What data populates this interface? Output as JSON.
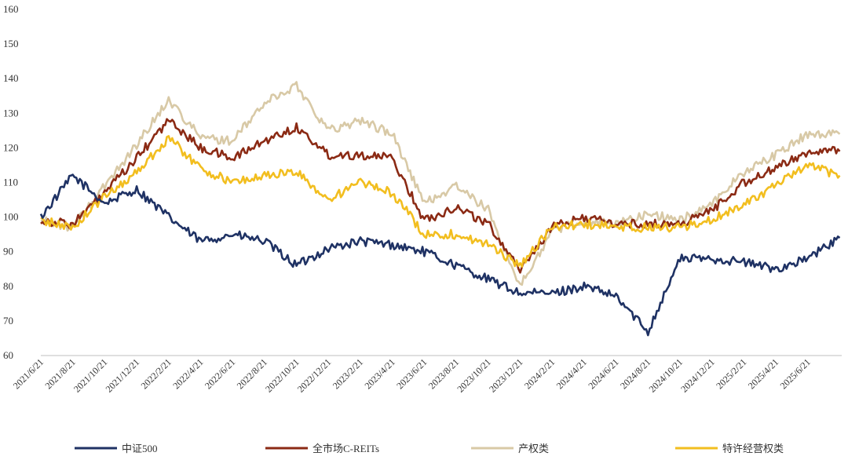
{
  "chart_data": {
    "type": "line",
    "title": "",
    "xlabel": "",
    "ylabel": "",
    "ylim": [
      60,
      160
    ],
    "yticks": [
      60,
      70,
      80,
      90,
      100,
      110,
      120,
      130,
      140,
      150,
      160
    ],
    "x": [
      "2021/6/21",
      "2021/8/21",
      "2021/10/21",
      "2021/12/21",
      "2022/2/21",
      "2022/4/21",
      "2022/6/21",
      "2022/8/21",
      "2022/10/21",
      "2022/12/21",
      "2023/2/21",
      "2023/4/21",
      "2023/6/21",
      "2023/8/21",
      "2023/10/21",
      "2023/12/21",
      "2024/2/21",
      "2024/4/21",
      "2024/6/21",
      "2024/8/21",
      "2024/10/21",
      "2024/12/21",
      "2025/2/21",
      "2025/4/21",
      "2025/6/21",
      "2025/7/21"
    ],
    "xticks": [
      "2021/6/21",
      "2021/8/21",
      "2021/10/21",
      "2021/12/21",
      "2022/2/21",
      "2022/4/21",
      "2022/6/21",
      "2022/8/21",
      "2022/10/21",
      "2022/12/21",
      "2023/2/21",
      "2023/4/21",
      "2023/6/21",
      "2023/8/21",
      "2023/10/21",
      "2023/12/21",
      "2024/2/21",
      "2024/4/21",
      "2024/6/21",
      "2024/8/21",
      "2024/10/21",
      "2024/12/21",
      "2025/2/21",
      "2025/4/21",
      "2025/6/21"
    ],
    "grid": false,
    "legend_position": "bottom",
    "series": [
      {
        "name": "中证500",
        "color": "#1f3264",
        "values": [
          100,
          112,
          104,
          108,
          100,
          93,
          95,
          93,
          86,
          91,
          93,
          92,
          90,
          86,
          82,
          78,
          78,
          80,
          77,
          67,
          88,
          88,
          87,
          85,
          88,
          94
        ]
      },
      {
        "name": "全市场C-REITs",
        "color": "#8b2a14",
        "values": [
          99,
          98,
          107,
          117,
          128,
          120,
          117,
          122,
          126,
          118,
          118,
          117,
          99,
          103,
          98,
          85,
          97,
          100,
          98,
          98,
          98,
          102,
          110,
          114,
          119,
          119
        ]
      },
      {
        "name": "产权类",
        "color": "#d8c9a6",
        "values": [
          99,
          97,
          109,
          121,
          134,
          123,
          122,
          133,
          138,
          125,
          128,
          124,
          104,
          109,
          102,
          80,
          96,
          99,
          98,
          101,
          99,
          104,
          113,
          118,
          124,
          124
        ]
      },
      {
        "name": "特许经营权类",
        "color": "#f2be1f",
        "values": [
          99,
          97,
          106,
          113,
          123,
          114,
          110,
          112,
          113,
          105,
          110,
          107,
          95,
          95,
          92,
          86,
          97,
          98,
          97,
          97,
          97,
          99,
          104,
          109,
          115,
          112
        ]
      }
    ]
  }
}
